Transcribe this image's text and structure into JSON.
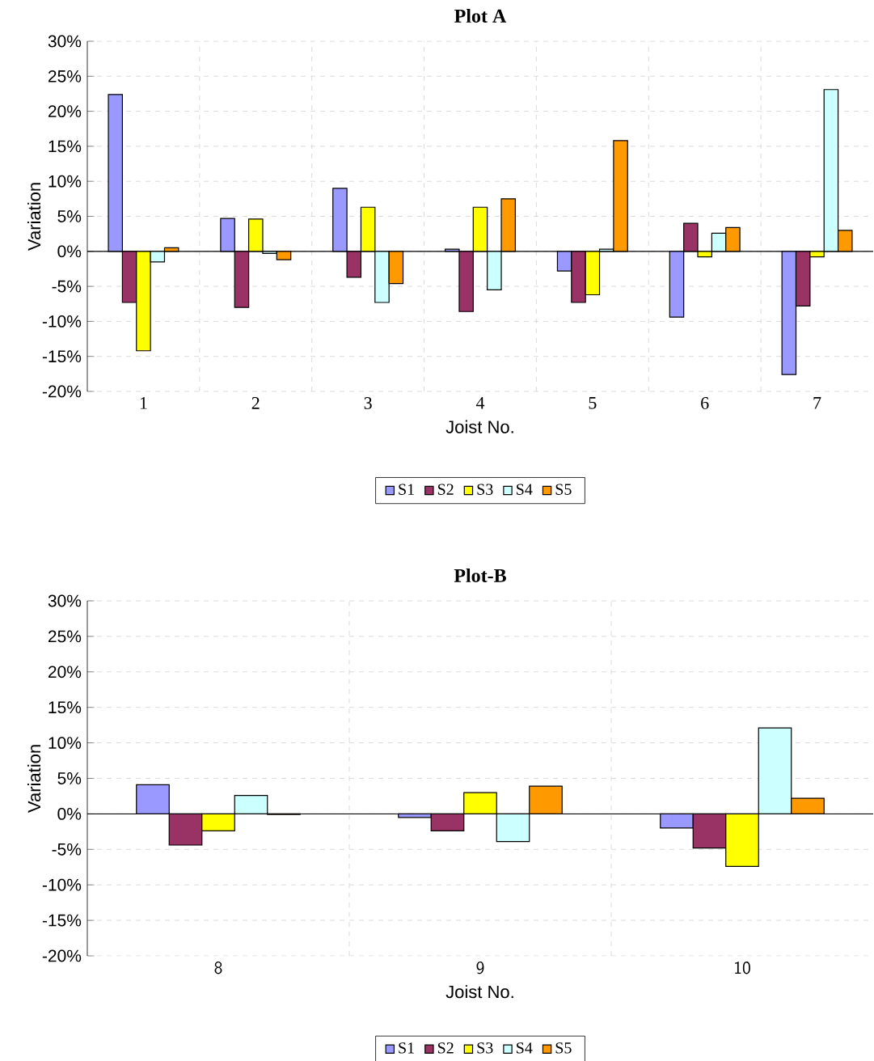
{
  "chart_data": [
    {
      "type": "bar",
      "title": "Plot A",
      "xlabel": "Joist No.",
      "ylabel": "Variation",
      "categories": [
        "1",
        "2",
        "3",
        "4",
        "5",
        "6",
        "7"
      ],
      "series": [
        {
          "name": "S1",
          "color": "#9999ff",
          "values": [
            22.4,
            4.7,
            9.0,
            0.3,
            -2.8,
            -9.4,
            -17.6
          ]
        },
        {
          "name": "S2",
          "color": "#993366",
          "values": [
            -7.3,
            -8.0,
            -3.7,
            -8.6,
            -7.3,
            4.0,
            -7.8
          ]
        },
        {
          "name": "S3",
          "color": "#ffff00",
          "values": [
            -14.2,
            4.6,
            6.3,
            6.3,
            -6.2,
            -0.8,
            -0.8
          ]
        },
        {
          "name": "S4",
          "color": "#ccffff",
          "values": [
            -1.5,
            -0.3,
            -7.3,
            -5.5,
            0.3,
            2.6,
            23.1
          ]
        },
        {
          "name": "S5",
          "color": "#ff9900",
          "values": [
            0.5,
            -1.2,
            -4.6,
            7.5,
            15.8,
            3.4,
            3.0
          ]
        }
      ],
      "ylim": [
        -20,
        30
      ],
      "yticks": [
        {
          "value": -20,
          "label": "-20%"
        },
        {
          "value": -15,
          "label": "-15%"
        },
        {
          "value": -10,
          "label": "-10%"
        },
        {
          "value": -5,
          "label": "-5%"
        },
        {
          "value": 0,
          "label": "0%"
        },
        {
          "value": 5,
          "label": "5%"
        },
        {
          "value": 10,
          "label": "10%"
        },
        {
          "value": 15,
          "label": "15%"
        },
        {
          "value": 20,
          "label": "20%"
        },
        {
          "value": 25,
          "label": "25%"
        },
        {
          "value": 30,
          "label": "30%"
        }
      ],
      "grid": true,
      "legend": "bottom"
    },
    {
      "type": "bar",
      "title": "Plot-B",
      "xlabel": "Joist No.",
      "ylabel": "Variation",
      "categories": [
        "8",
        "9",
        "10"
      ],
      "series": [
        {
          "name": "S1",
          "color": "#9999ff",
          "values": [
            4.1,
            -0.5,
            -2.0
          ]
        },
        {
          "name": "S2",
          "color": "#993366",
          "values": [
            -4.4,
            -2.4,
            -4.8
          ]
        },
        {
          "name": "S3",
          "color": "#ffff00",
          "values": [
            -2.4,
            3.0,
            -7.4
          ]
        },
        {
          "name": "S4",
          "color": "#ccffff",
          "values": [
            2.6,
            -3.9,
            12.1
          ]
        },
        {
          "name": "S5",
          "color": "#ff9900",
          "values": [
            -0.1,
            3.9,
            2.2
          ]
        }
      ],
      "ylim": [
        -20,
        30
      ],
      "yticks": [
        {
          "value": -20,
          "label": "-20%"
        },
        {
          "value": -15,
          "label": "-15%"
        },
        {
          "value": -10,
          "label": "-10%"
        },
        {
          "value": -5,
          "label": "-5%"
        },
        {
          "value": 0,
          "label": "0%"
        },
        {
          "value": 5,
          "label": "5%"
        },
        {
          "value": 10,
          "label": "10%"
        },
        {
          "value": 15,
          "label": "15%"
        },
        {
          "value": 20,
          "label": "20%"
        },
        {
          "value": 25,
          "label": "25%"
        },
        {
          "value": 30,
          "label": "30%"
        }
      ],
      "grid": true,
      "legend": "bottom"
    }
  ]
}
